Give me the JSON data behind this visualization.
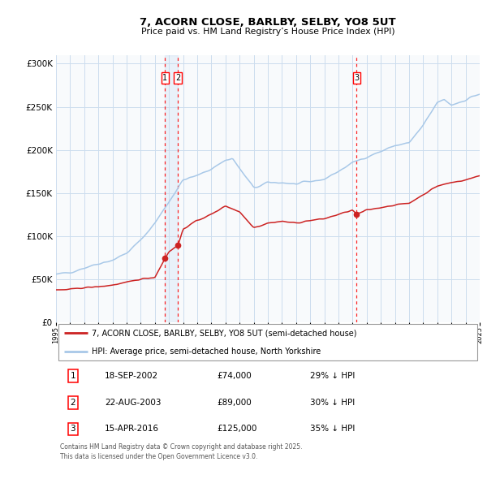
{
  "title": "7, ACORN CLOSE, BARLBY, SELBY, YO8 5UT",
  "subtitle": "Price paid vs. HM Land Registry’s House Price Index (HPI)",
  "ylim": [
    0,
    310000
  ],
  "yticks": [
    0,
    50000,
    100000,
    150000,
    200000,
    250000,
    300000
  ],
  "x_start_year": 1995,
  "x_end_year": 2025,
  "hpi_color": "#a8c8e8",
  "price_color": "#cc2222",
  "sale1_date": 2002.72,
  "sale1_price": 74000,
  "sale1_label": "1",
  "sale1_display": "18-SEP-2002",
  "sale1_amount": "£74,000",
  "sale1_hpi": "29% ↓ HPI",
  "sale2_date": 2003.64,
  "sale2_price": 89000,
  "sale2_label": "2",
  "sale2_display": "22-AUG-2003",
  "sale2_amount": "£89,000",
  "sale2_hpi": "30% ↓ HPI",
  "sale3_date": 2016.29,
  "sale3_price": 125000,
  "sale3_label": "3",
  "sale3_display": "15-APR-2016",
  "sale3_amount": "£125,000",
  "sale3_hpi": "35% ↓ HPI",
  "legend_red_label": "7, ACORN CLOSE, BARLBY, SELBY, YO8 5UT (semi-detached house)",
  "legend_blue_label": "HPI: Average price, semi-detached house, North Yorkshire",
  "footnote_line1": "Contains HM Land Registry data © Crown copyright and database right 2025.",
  "footnote_line2": "This data is licensed under the Open Government Licence v3.0.",
  "grid_color": "#ccddee",
  "bg_color": "#f8fafc"
}
